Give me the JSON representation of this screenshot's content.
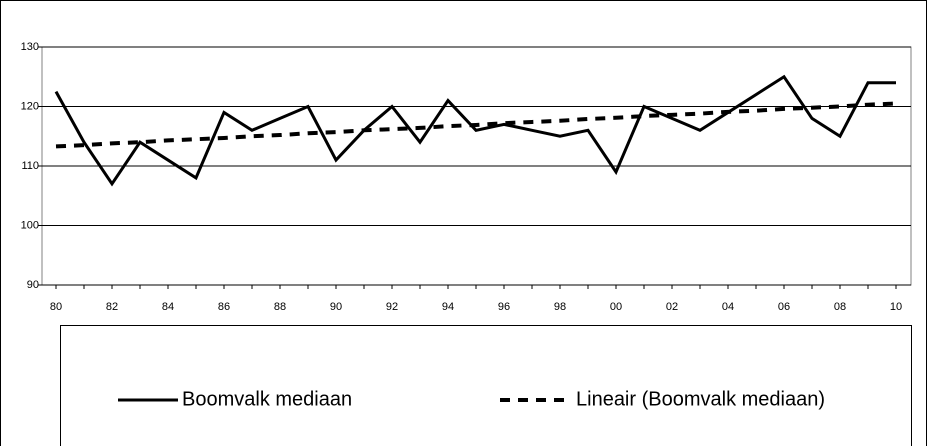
{
  "chart_data": {
    "type": "line",
    "categories": [
      "80",
      null,
      "82",
      null,
      "84",
      null,
      "86",
      null,
      "88",
      null,
      "90",
      null,
      "92",
      null,
      "94",
      null,
      "96",
      null,
      "98",
      null,
      "00",
      null,
      "02",
      null,
      "04",
      null,
      "06",
      null,
      "08",
      null,
      "10"
    ],
    "series": [
      {
        "name": "Boomvalk mediaan",
        "color": "#000000",
        "dash": false,
        "values": [
          122.5,
          114,
          107,
          114,
          111,
          108,
          119,
          116,
          118,
          120,
          111,
          116,
          120,
          114,
          121,
          116,
          117,
          116,
          115,
          116,
          109,
          120,
          118,
          116,
          119,
          122,
          125,
          118,
          115,
          124,
          124
        ]
      },
      {
        "name": "Lineair (Boomvalk mediaan)",
        "color": "#000000",
        "dash": true,
        "values": [
          113.3,
          113.5,
          113.8,
          114.0,
          114.3,
          114.5,
          114.7,
          115.0,
          115.2,
          115.5,
          115.7,
          116.0,
          116.2,
          116.4,
          116.7,
          116.9,
          117.2,
          117.4,
          117.6,
          117.9,
          118.1,
          118.4,
          118.6,
          118.8,
          119.1,
          119.3,
          119.6,
          119.8,
          120.0,
          120.3,
          120.5
        ]
      }
    ],
    "ylim": [
      90,
      130
    ],
    "yticks": [
      90,
      100,
      110,
      120,
      130
    ],
    "grid": true,
    "legend": "bottom"
  }
}
